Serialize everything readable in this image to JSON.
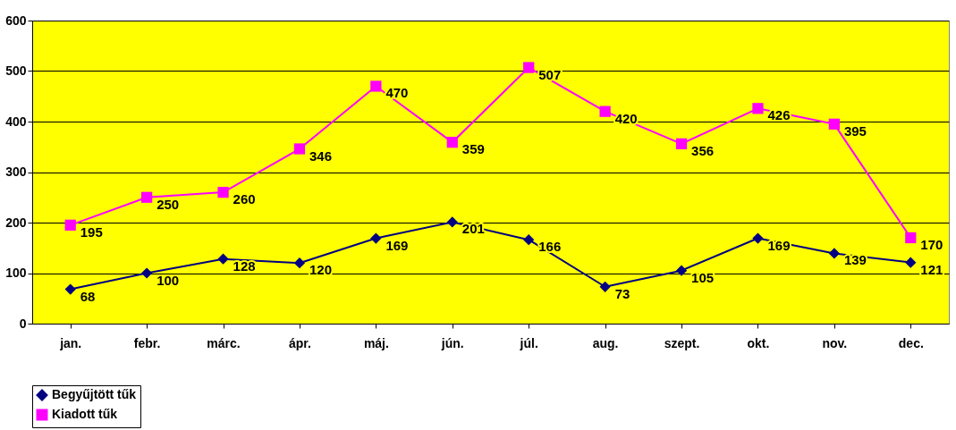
{
  "chart_data": {
    "type": "line",
    "categories": [
      "jan.",
      "febr.",
      "márc.",
      "ápr.",
      "máj.",
      "jún.",
      "júl.",
      "aug.",
      "szept.",
      "okt.",
      "nov.",
      "dec."
    ],
    "series": [
      {
        "name": "Begyűjtött tűk",
        "color": "#000080",
        "marker": "diamond",
        "values": [
          68,
          100,
          128,
          120,
          169,
          201,
          166,
          73,
          105,
          169,
          139,
          121
        ]
      },
      {
        "name": "Kiadott tűk",
        "color": "#ff00ff",
        "marker": "square",
        "values": [
          195,
          250,
          260,
          346,
          470,
          359,
          507,
          420,
          356,
          426,
          395,
          170
        ]
      }
    ],
    "ylim": [
      0,
      600
    ],
    "yticks": [
      0,
      100,
      200,
      300,
      400,
      500,
      600
    ],
    "grid": "y",
    "legend": "bottom",
    "data_labels": true
  }
}
